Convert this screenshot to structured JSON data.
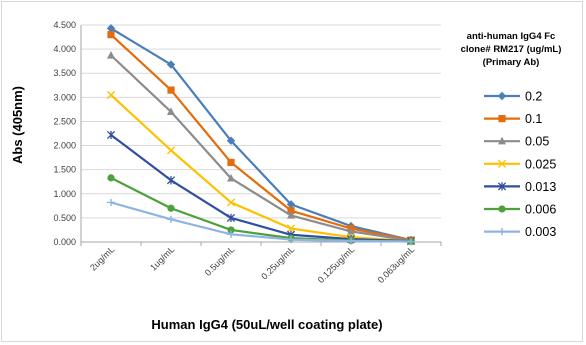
{
  "chart_data": {
    "type": "line",
    "title": "",
    "xlabel": "Human IgG4 (50uL/well coating plate)",
    "ylabel": "Abs (405nm)",
    "ylim": [
      0,
      4.5
    ],
    "yticks": [
      "0.000",
      "0.500",
      "1.000",
      "1.500",
      "2.000",
      "2.500",
      "3.000",
      "3.500",
      "4.000",
      "4.500"
    ],
    "categories": [
      "2ug/mL",
      "1ug/mL",
      "0.5ug/mL",
      "0.25ug/mL",
      "0.125ug/mL",
      "0.063ug/mL"
    ],
    "grid": true,
    "legend_position": "right",
    "legend_title": [
      "anti-human IgG4 Fc",
      "clone# RM217 (ug/mL)",
      "(Primary Ab)"
    ],
    "series": [
      {
        "name": "0.2",
        "color": "#4a7ebb",
        "marker": "diamond",
        "values": [
          4.43,
          3.68,
          2.1,
          0.78,
          0.33,
          0.04
        ]
      },
      {
        "name": "0.1",
        "color": "#e46c0a",
        "marker": "square",
        "values": [
          4.3,
          3.15,
          1.65,
          0.65,
          0.28,
          0.04
        ]
      },
      {
        "name": "0.05",
        "color": "#8c8c8c",
        "marker": "triangle",
        "values": [
          3.87,
          2.7,
          1.32,
          0.55,
          0.22,
          0.03
        ]
      },
      {
        "name": "0.025",
        "color": "#ffc000",
        "marker": "x",
        "values": [
          3.05,
          1.9,
          0.82,
          0.28,
          0.1,
          0.02
        ]
      },
      {
        "name": "0.013",
        "color": "#2f4f9f",
        "marker": "star",
        "values": [
          2.22,
          1.28,
          0.5,
          0.15,
          0.06,
          0.02
        ]
      },
      {
        "name": "0.006",
        "color": "#4da03c",
        "marker": "circle",
        "values": [
          1.33,
          0.7,
          0.25,
          0.08,
          0.03,
          0.01
        ]
      },
      {
        "name": "0.003",
        "color": "#8db4e2",
        "marker": "plus",
        "values": [
          0.82,
          0.47,
          0.16,
          0.05,
          0.02,
          0.01
        ]
      }
    ]
  }
}
